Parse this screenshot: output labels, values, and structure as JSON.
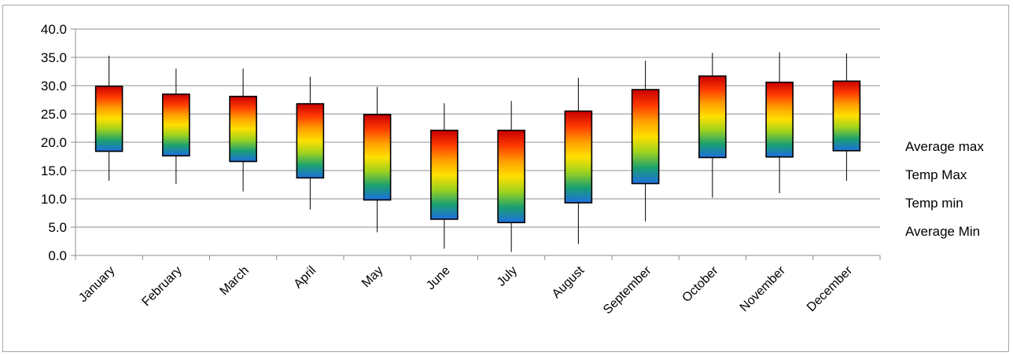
{
  "chart_data": {
    "type": "candlestick",
    "title": "",
    "xlabel": "",
    "ylabel": "",
    "ylim": [
      0,
      40
    ],
    "ytick_step": 5,
    "ytick_labels": [
      "0.0",
      "5.0",
      "10.0",
      "15.0",
      "20.0",
      "25.0",
      "30.0",
      "35.0",
      "40.0"
    ],
    "grid": true,
    "legend_position": "right",
    "legend": [
      "Average max",
      "Temp Max",
      "Temp min",
      "Average Min"
    ],
    "categories": [
      "January",
      "February",
      "March",
      "April",
      "May",
      "June",
      "July",
      "August",
      "September",
      "October",
      "November",
      "December"
    ],
    "series": [
      {
        "name": "Average max",
        "values": [
          29.9,
          28.5,
          28.1,
          26.8,
          24.9,
          22.1,
          22.1,
          25.5,
          29.3,
          31.7,
          30.6,
          30.8
        ]
      },
      {
        "name": "Temp Max",
        "values": [
          35.3,
          33.0,
          33.0,
          31.6,
          29.8,
          26.9,
          27.3,
          31.4,
          34.4,
          35.8,
          35.9,
          35.7
        ]
      },
      {
        "name": "Temp min",
        "values": [
          13.2,
          12.6,
          11.3,
          8.1,
          4.1,
          1.2,
          0.6,
          2.0,
          6.0,
          10.2,
          11.0,
          13.2
        ]
      },
      {
        "name": "Average Min",
        "values": [
          18.4,
          17.6,
          16.6,
          13.7,
          9.8,
          6.4,
          5.8,
          9.3,
          12.7,
          17.3,
          17.4,
          18.5
        ]
      }
    ],
    "box_gradient": [
      "#1e6fe0",
      "#1aa070",
      "#9cd21e",
      "#ffe000",
      "#ff9e00",
      "#ff3a00",
      "#c80000"
    ]
  }
}
